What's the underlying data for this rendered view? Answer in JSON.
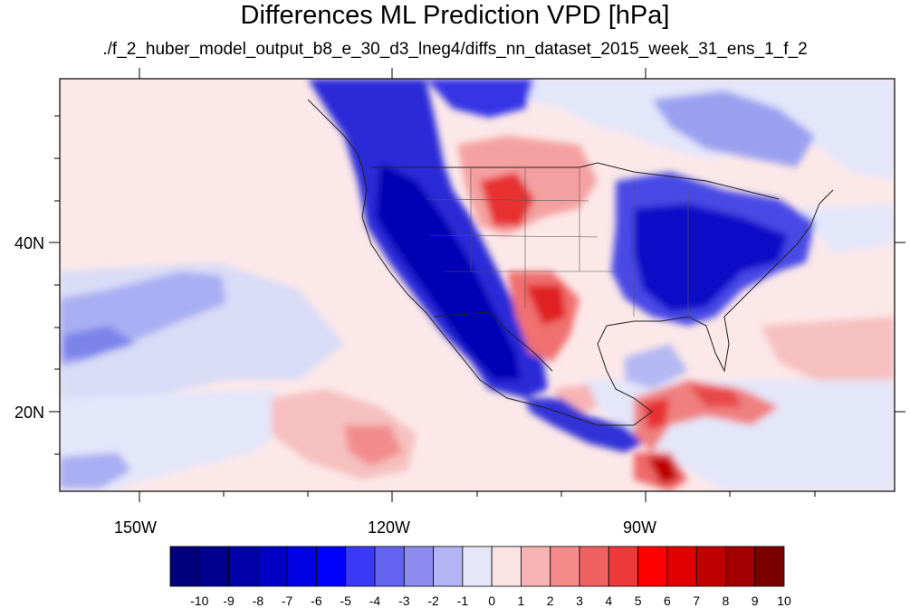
{
  "header": {
    "title": "Differences ML Prediction VPD [hPa]",
    "subtitle": "./f_2_huber_model_output_b8_e_30_d3_lneg4/diffs_nn_dataset_2015_week_31_ens_1_f_2"
  },
  "axes": {
    "lon_labels": [
      "150W",
      "120W",
      "90W"
    ],
    "lat_labels": [
      "40N",
      "20N"
    ]
  },
  "colorbar": {
    "labels": [
      "-10",
      "-9",
      "-8",
      "-7",
      "-6",
      "-5",
      "-4",
      "-3",
      "-2",
      "-1",
      "0",
      "1",
      "2",
      "3",
      "4",
      "5",
      "6",
      "7",
      "8",
      "9",
      "10"
    ],
    "colors": [
      "#00007a",
      "#00008f",
      "#0000a8",
      "#0000c4",
      "#0000e0",
      "#0000ff",
      "#3a3af5",
      "#6464f2",
      "#8c8cf0",
      "#b4b4f5",
      "#e6e6fa",
      "#fbe3e3",
      "#f8b4b4",
      "#f48a8a",
      "#f06060",
      "#ec3a3a",
      "#fe0000",
      "#e00000",
      "#c00000",
      "#a20000",
      "#7a0000"
    ]
  },
  "colors": {
    "neutral_pos": "#fce8e8",
    "neutral_neg": "#e4e6fa",
    "coast": "#222222"
  }
}
